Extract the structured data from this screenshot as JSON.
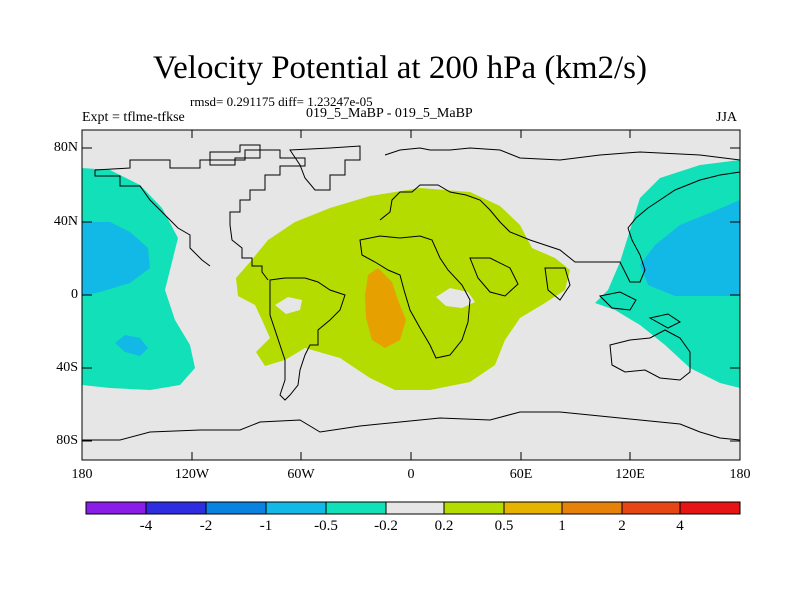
{
  "title": "Velocity Potential at 200 hPa (km2/s)",
  "stats_line": "rmsd= 0.291175 diff= 1.23247e-05",
  "expt_label": "Expt = tflme-tfkse",
  "case_label": "019_5_MaBP - 019_5_MaBP",
  "season_label": "JJA",
  "lat_labels": [
    "80N",
    "40N",
    "0",
    "40S",
    "80S"
  ],
  "lon_labels": [
    "180",
    "120W",
    "60W",
    "0",
    "60E",
    "120E",
    "180"
  ],
  "colorbar": {
    "colors": [
      "#8a1ee6",
      "#2e2ee0",
      "#0a82e0",
      "#12b9e6",
      "#12e0b8",
      "#e6e6e6",
      "#b4dc00",
      "#e6b400",
      "#e6820a",
      "#e64614",
      "#e61414"
    ],
    "labels": [
      "-4",
      "-2",
      "-1",
      "-0.5",
      "-0.2",
      "0.2",
      "0.5",
      "1",
      "2",
      "4"
    ]
  },
  "map_colors": {
    "background": "#e6e6e6",
    "negative_fill": "#12e0b8",
    "strong_negative_fill": "#12b9e6",
    "positive_fill": "#b4dc00",
    "strong_positive_fill": "#e6a000"
  }
}
